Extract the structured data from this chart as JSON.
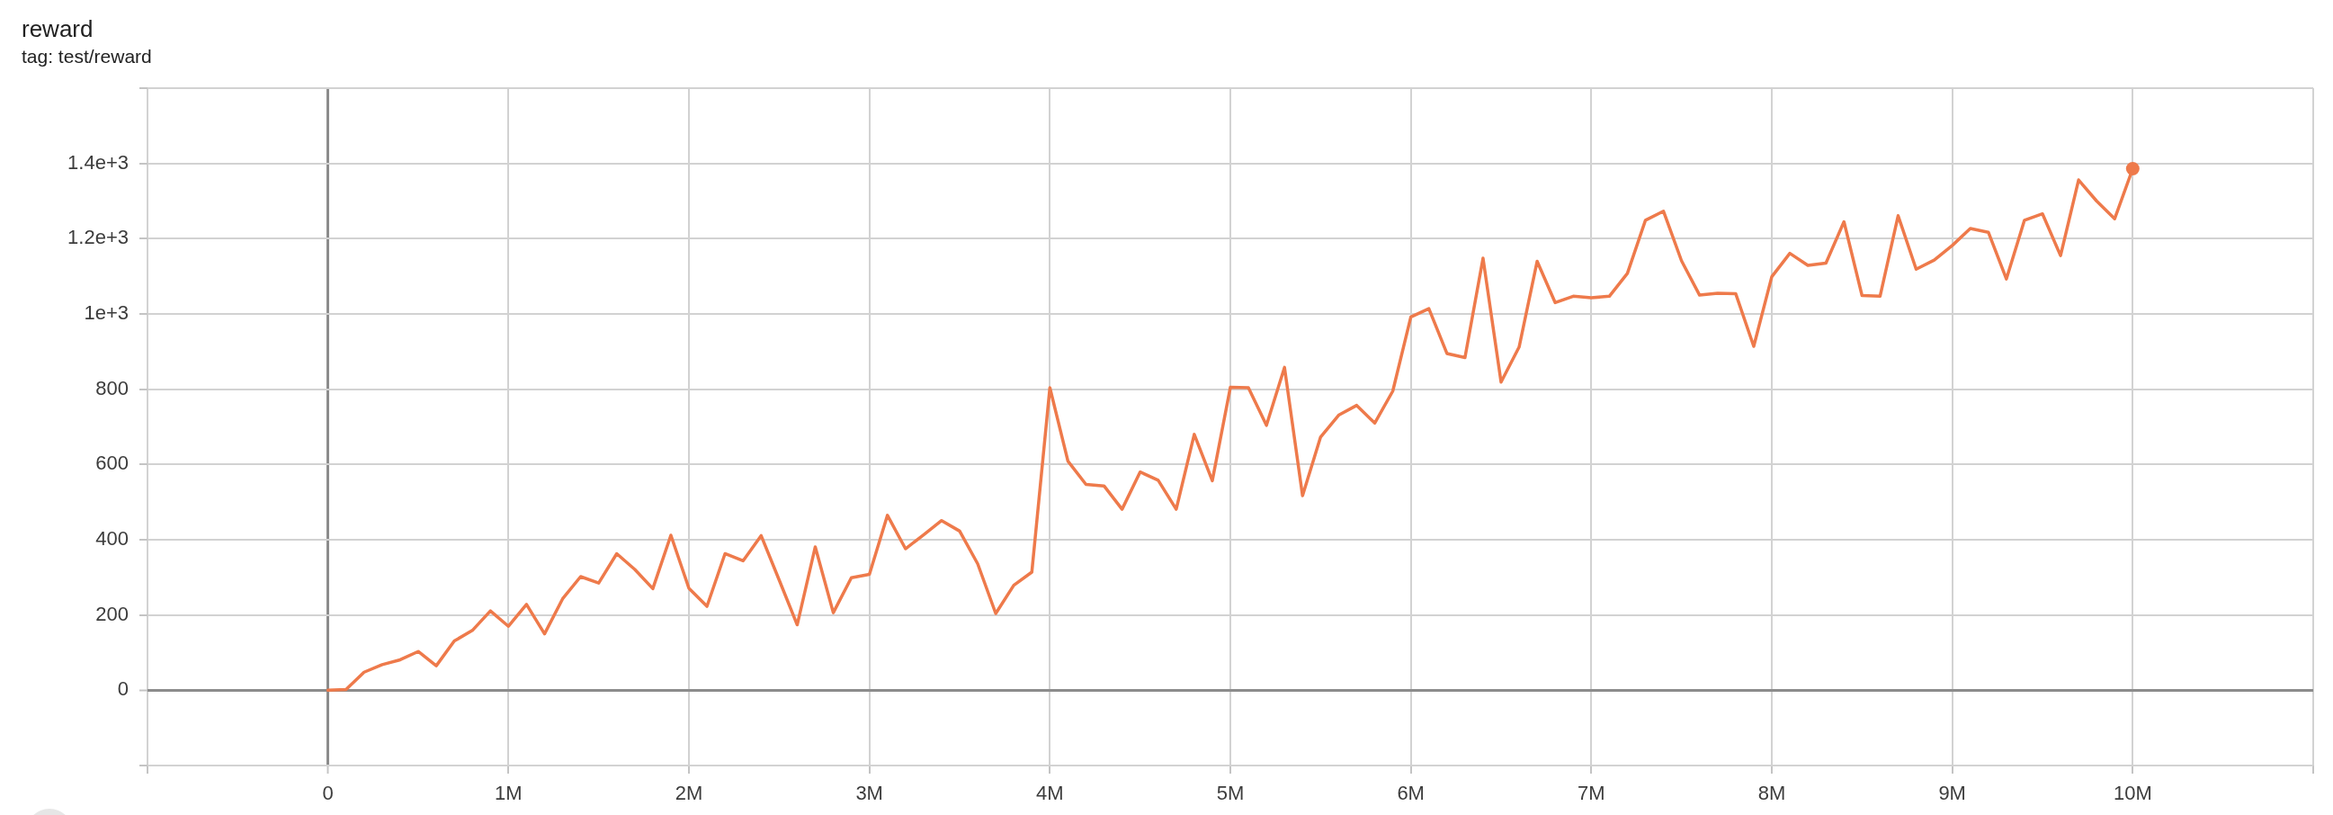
{
  "chart_data": {
    "type": "line",
    "title": "reward",
    "subtitle": "tag: test/reward",
    "x": [
      0,
      100000,
      200000,
      300000,
      400000,
      500000,
      600000,
      700000,
      800000,
      900000,
      1000000,
      1100000,
      1200000,
      1300000,
      1400000,
      1500000,
      1600000,
      1700000,
      1800000,
      1900000,
      2000000,
      2100000,
      2200000,
      2300000,
      2400000,
      2500000,
      2600000,
      2700000,
      2800000,
      2900000,
      3000000,
      3100000,
      3200000,
      3300000,
      3400000,
      3500000,
      3600000,
      3700000,
      3800000,
      3900000,
      4000000,
      4100000,
      4200000,
      4300000,
      4400000,
      4500000,
      4600000,
      4700000,
      4800000,
      4900000,
      5000000,
      5100000,
      5200000,
      5300000,
      5400000,
      5500000,
      5600000,
      5700000,
      5800000,
      5900000,
      6000000,
      6100000,
      6200000,
      6300000,
      6400000,
      6500000,
      6600000,
      6700000,
      6800000,
      6900000,
      7000000,
      7100000,
      7200000,
      7300000,
      7400000,
      7500000,
      7600000,
      7700000,
      7800000,
      7900000,
      8000000,
      8100000,
      8200000,
      8300000,
      8400000,
      8500000,
      8600000,
      8700000,
      8800000,
      8900000,
      9000000,
      9100000,
      9200000,
      9300000,
      9400000,
      9500000,
      9600000,
      9700000,
      9800000,
      9900000,
      10000000
    ],
    "series": [
      {
        "color": "#ee7a4b",
        "marker": "none",
        "values": [
          0,
          2,
          48,
          68,
          81,
          103,
          65,
          131,
          159,
          211,
          170,
          228,
          150,
          243,
          302,
          285,
          363,
          321,
          270,
          412,
          271,
          223,
          363,
          344,
          411,
          293,
          174,
          381,
          206,
          299,
          308,
          465,
          376,
          413,
          451,
          423,
          336,
          204,
          279,
          314,
          804,
          609,
          547,
          543,
          481,
          580,
          558,
          481,
          680,
          557,
          805,
          804,
          704,
          858,
          517,
          673,
          731,
          757,
          710,
          795,
          992,
          1014,
          895,
          884,
          1148,
          819,
          912,
          1140,
          1030,
          1047,
          1043,
          1047,
          1108,
          1249,
          1273,
          1141,
          1050,
          1055,
          1054,
          914,
          1099,
          1161,
          1129,
          1135,
          1245,
          1049,
          1047,
          1261,
          1119,
          1143,
          1182,
          1227,
          1217,
          1093,
          1249,
          1266,
          1155,
          1356,
          1300,
          1253,
          1386
        ]
      },
      {
        "type": "scatter",
        "color": "#ee7a4b",
        "marker": "circle",
        "x": [
          10000000
        ],
        "values": [
          1386
        ]
      }
    ],
    "xlim": [
      -1000000,
      11000000
    ],
    "ylim": [
      -200,
      1600
    ],
    "xticks": [
      {
        "value": -1000000,
        "label": null
      },
      0,
      {
        "value": 1000000,
        "label": "1M"
      },
      {
        "value": 2000000,
        "label": "2M"
      },
      {
        "value": 3000000,
        "label": "3M"
      },
      {
        "value": 4000000,
        "label": "4M"
      },
      {
        "value": 5000000,
        "label": "5M"
      },
      {
        "value": 6000000,
        "label": "6M"
      },
      {
        "value": 7000000,
        "label": "7M"
      },
      {
        "value": 8000000,
        "label": "8M"
      },
      {
        "value": 9000000,
        "label": "9M"
      },
      {
        "value": 10000000,
        "label": "10M"
      },
      {
        "value": 11000000,
        "label": null
      }
    ],
    "yticks": [
      {
        "value": -200,
        "label": null
      },
      0,
      200,
      400,
      600,
      800,
      {
        "value": 1000,
        "label": "1e+3"
      },
      {
        "value": 1200,
        "label": "1.2e+3"
      },
      {
        "value": 1400,
        "label": "1.4e+3"
      },
      {
        "value": 1600,
        "label": null
      }
    ],
    "grid": true
  }
}
